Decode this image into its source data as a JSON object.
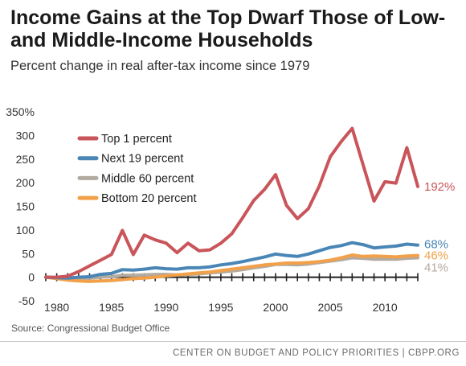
{
  "header": {
    "title": "Income Gains at the Top Dwarf Those of Low- and Middle-Income Households",
    "subtitle": "Percent change in real after-tax income since 1979"
  },
  "footer": {
    "source": "Source: Congressional Budget Office",
    "credit": "CENTER ON BUDGET AND POLICY PRIORITIES | CBPP.ORG"
  },
  "colors": {
    "top1": "#c9555a",
    "next19": "#4a86b5",
    "middle60": "#b3aaa0",
    "bottom20": "#f2a14a",
    "axis": "#222222"
  },
  "chart_data": {
    "type": "line",
    "title": "Income Gains at the Top Dwarf Those of Low- and Middle-Income Households",
    "ylabel": "Percent change in real after-tax income since 1979",
    "xlabel": "",
    "xlim": [
      1979,
      2013
    ],
    "ylim": [
      -50,
      350
    ],
    "x_ticks": [
      "1980",
      "1985",
      "1990",
      "1995",
      "2000",
      "2005",
      "2010"
    ],
    "y_ticks": [
      "350%",
      "300",
      "250",
      "200",
      "150",
      "100",
      "50",
      "0",
      "-50"
    ],
    "grid": false,
    "legend_position": "top-left",
    "x": [
      1979,
      1980,
      1981,
      1982,
      1983,
      1984,
      1985,
      1986,
      1987,
      1988,
      1989,
      1990,
      1991,
      1992,
      1993,
      1994,
      1995,
      1996,
      1997,
      1998,
      1999,
      2000,
      2001,
      2002,
      2003,
      2004,
      2005,
      2006,
      2007,
      2008,
      2009,
      2010,
      2011,
      2012,
      2013
    ],
    "series": [
      {
        "name": "Top 1 percent",
        "color_key": "top1",
        "end_label": "192%",
        "values": [
          0,
          0,
          2,
          12,
          24,
          36,
          48,
          99,
          48,
          89,
          79,
          72,
          52,
          72,
          56,
          58,
          72,
          92,
          126,
          162,
          186,
          217,
          152,
          124,
          145,
          193,
          255,
          287,
          315,
          238,
          161,
          202,
          199,
          274,
          192
        ]
      },
      {
        "name": "Next 19 percent",
        "color_key": "next19",
        "end_label": "68%",
        "values": [
          0,
          -1,
          -2,
          0,
          1,
          6,
          8,
          16,
          15,
          17,
          20,
          18,
          17,
          20,
          20,
          22,
          26,
          29,
          33,
          38,
          43,
          49,
          46,
          44,
          49,
          56,
          63,
          67,
          73,
          69,
          62,
          64,
          66,
          70,
          68
        ]
      },
      {
        "name": "Middle 60 percent",
        "color_key": "middle60",
        "end_label": "41%",
        "values": [
          0,
          -1,
          -2,
          -3,
          -2,
          0,
          1,
          4,
          4,
          5,
          6,
          6,
          5,
          6,
          7,
          9,
          11,
          13,
          16,
          20,
          23,
          27,
          27,
          26,
          28,
          31,
          34,
          37,
          41,
          40,
          38,
          38,
          38,
          40,
          41
        ]
      },
      {
        "name": "Bottom 20 percent",
        "color_key": "bottom20",
        "end_label": "46%",
        "values": [
          0,
          -3,
          -6,
          -8,
          -9,
          -8,
          -7,
          -5,
          -3,
          -2,
          0,
          3,
          5,
          7,
          9,
          11,
          14,
          17,
          20,
          23,
          26,
          28,
          30,
          30,
          31,
          33,
          36,
          41,
          47,
          44,
          45,
          44,
          43,
          45,
          46
        ]
      }
    ]
  }
}
